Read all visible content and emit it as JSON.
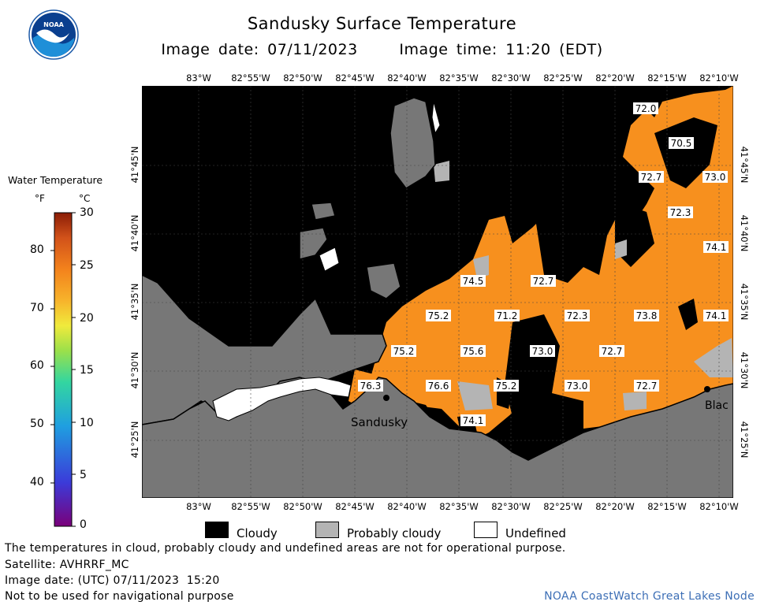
{
  "header": {
    "title": "Sandusky Surface Temperature",
    "subtitle": "Image date: 07/11/2023     Image time: 11:20 (EDT)",
    "logo_text": "NOAA"
  },
  "legend": {
    "title": "Water Temperature",
    "unit_f": "°F",
    "unit_c": "°C",
    "f_ticks": [
      "80",
      "70",
      "60",
      "50",
      "40"
    ],
    "c_ticks": [
      "30",
      "25",
      "20",
      "15",
      "10",
      "5",
      "0"
    ],
    "colors": [
      "#7a007a",
      "#3b3bd9",
      "#1f9fe0",
      "#33d6a0",
      "#9be04a",
      "#f0ea3c",
      "#f7b32b",
      "#f3821c",
      "#d2521a",
      "#8a1c06"
    ]
  },
  "axes": {
    "lon_labels": [
      "83°W",
      "82°55'W",
      "82°50'W",
      "82°45'W",
      "82°40'W",
      "82°35'W",
      "82°30'W",
      "82°25'W",
      "82°20'W",
      "82°15'W",
      "82°10'W"
    ],
    "lat_labels": [
      "41°45'N",
      "41°40'N",
      "41°35'N",
      "41°30'N",
      "41°25'N"
    ]
  },
  "map": {
    "place_labels": [
      "Sandusky",
      "Blac"
    ],
    "temperature_labels": [
      "72.0",
      "70.5",
      "72.7",
      "73.0",
      "72.3",
      "74.1",
      "74.5",
      "72.7",
      "75.2",
      "71.2",
      "72.3",
      "73.8",
      "74.1",
      "75.2",
      "75.6",
      "73.0",
      "72.7",
      "76.3",
      "76.6",
      "75.2",
      "73.0",
      "72.7",
      "74.1"
    ],
    "colors": {
      "land": "#777777",
      "cloudy": "#000000",
      "probably_cloudy": "#b4b4b4",
      "water": "#f7901e"
    }
  },
  "key": {
    "cloudy": "Cloudy",
    "probably_cloudy": "Probably cloudy",
    "undefined": "Undefined"
  },
  "footer": {
    "note": "The temperatures in cloud, probably cloudy and undefined areas are not for operational purpose.",
    "satellite": "Satellite: AVHRRF_MC",
    "utc_date": "Image date: (UTC) 07/11/2023  15:20",
    "nav_warning": "Not to be used for navigational purpose",
    "credit": "NOAA CoastWatch Great Lakes Node"
  }
}
